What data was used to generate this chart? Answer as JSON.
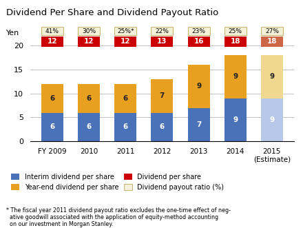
{
  "title": "Dividend Per Share and Dividend Payout Ratio",
  "ylabel": "Yen",
  "categories": [
    "FY 2009",
    "2010",
    "2011",
    "2012",
    "2013",
    "2014",
    "2015\n(Estimate)"
  ],
  "interim": [
    6,
    6,
    6,
    6,
    7,
    9,
    9
  ],
  "yearend": [
    6,
    6,
    6,
    7,
    9,
    9,
    9
  ],
  "total_dividend": [
    12,
    12,
    12,
    13,
    16,
    18,
    18
  ],
  "payout_ratio": [
    "41%",
    "30%",
    "25%*",
    "22%",
    "23%",
    "25%",
    "27%"
  ],
  "color_interim_normal": "#4a72b8",
  "color_interim_estimate": "#b8c8e8",
  "color_yearend_normal": "#e8a020",
  "color_yearend_estimate": "#f0d890",
  "color_red_normal": "#cc0000",
  "color_red_estimate": "#cc6644",
  "color_payout_box_bg": "#f5f0d8",
  "color_payout_box_border": "#c8b878",
  "ylim": [
    0,
    20
  ],
  "yticks": [
    0,
    5,
    10,
    15,
    20
  ],
  "footnote": "* The fiscal year 2011 dividend payout ratio excludes the one-time effect of neg-\n  ative goodwill associated with the application of equity-method accounting\n  on our investment in Morgan Stanley."
}
